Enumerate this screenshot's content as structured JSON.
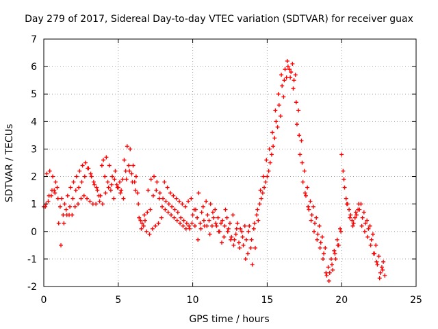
{
  "chart_data": {
    "type": "scatter",
    "title": "Day 279 of 2017, Sidereal Day-to-day VTEC variation (SDTVAR) for receiver guax",
    "xlabel": "GPS time / hours",
    "ylabel": "SDTVAR / TECUs",
    "xlim": [
      0,
      25
    ],
    "ylim": [
      -2,
      7
    ],
    "xticks": [
      "0",
      "5",
      "10",
      "15",
      "20",
      "25"
    ],
    "yticks": [
      "-2",
      "-1",
      "0",
      "1",
      "2",
      "3",
      "4",
      "5",
      "6",
      "7"
    ],
    "grid": true,
    "marker": "+",
    "color": "#ff0000",
    "series": [
      {
        "name": "SDTVAR",
        "x": [
          0.0,
          0.2,
          0.4,
          0.6,
          0.8,
          1.0,
          1.2,
          1.4,
          1.6,
          1.8,
          2.0,
          2.2,
          2.4,
          2.6,
          2.8,
          3.0,
          3.2,
          3.4,
          3.6,
          3.8,
          4.0,
          4.2,
          4.4,
          4.6,
          4.8,
          5.0,
          5.2,
          5.4,
          5.6,
          5.8,
          6.0,
          6.2,
          6.4,
          6.6,
          6.8,
          7.0,
          7.2,
          7.4,
          7.6,
          7.8,
          8.0,
          8.2,
          8.4,
          8.6,
          8.8,
          9.0,
          9.2,
          9.4,
          9.6,
          9.8,
          10.0,
          10.2,
          10.4,
          10.6,
          10.8,
          11.0,
          11.2,
          11.4,
          11.6,
          11.8,
          12.0,
          12.2,
          12.4,
          12.6,
          12.8,
          13.0,
          13.2,
          13.4,
          13.6,
          13.8,
          14.0,
          14.2,
          14.4,
          14.6,
          14.8,
          15.0,
          15.2,
          15.4,
          15.6,
          15.8,
          16.0,
          16.2,
          16.4,
          16.6,
          16.8,
          17.0,
          17.2,
          17.4,
          17.6,
          17.8,
          18.0,
          18.2,
          18.4,
          18.6,
          18.8,
          19.0,
          19.2,
          19.4,
          19.6,
          19.8,
          20.0,
          20.2,
          20.4,
          20.6,
          20.8,
          21.0,
          21.2,
          21.4,
          21.6,
          21.8,
          22.0,
          22.2,
          22.4,
          22.6,
          22.8,
          0.1,
          0.3,
          0.5,
          0.7,
          0.9,
          1.1,
          1.3,
          1.5,
          1.7,
          1.9,
          2.1,
          2.3,
          2.5,
          2.7,
          2.9,
          3.1,
          3.3,
          3.5,
          3.7,
          3.9,
          4.1,
          4.3,
          4.5,
          4.7,
          4.9,
          5.1,
          5.3,
          5.5,
          5.7,
          5.9,
          6.1,
          6.3,
          6.5,
          6.7,
          6.9,
          7.1,
          7.3,
          7.5,
          7.7,
          7.9,
          8.1,
          8.3,
          8.5,
          8.7,
          8.9,
          9.1,
          9.3,
          9.5,
          9.7,
          9.9,
          10.1,
          10.3,
          10.5,
          10.7,
          10.9,
          11.1,
          11.3,
          11.5,
          11.7,
          11.9,
          12.1,
          12.3,
          12.5,
          12.7,
          12.9,
          13.1,
          13.3,
          13.5,
          13.7,
          13.9,
          14.1,
          14.3,
          14.5,
          14.7,
          14.9,
          15.1,
          15.3,
          15.5,
          15.7,
          15.9,
          16.1,
          16.3,
          16.5,
          16.7,
          16.9,
          17.1,
          17.3,
          17.5,
          17.7,
          17.9,
          18.1,
          18.3,
          18.5,
          18.7,
          18.9,
          19.1,
          19.3,
          19.5,
          19.7,
          19.9,
          20.1,
          20.3,
          20.5,
          20.7,
          20.9,
          21.1,
          21.3,
          21.5,
          21.7,
          21.9,
          22.1,
          22.3,
          22.5,
          22.7,
          22.9,
          0.15,
          0.35,
          0.55,
          0.75,
          0.95,
          1.15,
          1.35,
          1.55,
          1.75,
          1.95,
          2.15,
          2.35,
          2.55,
          2.75,
          2.95,
          3.15,
          3.35,
          3.55,
          3.75,
          3.95,
          4.15,
          4.35,
          4.55,
          4.75,
          4.95,
          5.15,
          5.35,
          5.55,
          5.75,
          5.95,
          6.15,
          6.35,
          6.55,
          6.75,
          6.95,
          7.15,
          7.35,
          7.55,
          7.75,
          7.95,
          8.15,
          8.35,
          8.55,
          8.75,
          8.95,
          9.15,
          9.35,
          9.55,
          9.75,
          9.95,
          10.15,
          10.35,
          10.55,
          10.75,
          10.95,
          11.15,
          11.35,
          11.55,
          11.75,
          11.95,
          12.15,
          12.35,
          12.55,
          12.75,
          12.95,
          13.15,
          13.35,
          13.55,
          13.75,
          13.95,
          14.15,
          14.35,
          14.55,
          14.75,
          14.95,
          15.15,
          15.35,
          15.55,
          15.75,
          15.95,
          16.15,
          16.35,
          16.55,
          16.75,
          16.95,
          17.15,
          17.35,
          17.55,
          17.75,
          17.95,
          18.15,
          18.35,
          18.55,
          18.75,
          18.95,
          19.15,
          19.35,
          19.55,
          19.75,
          19.95,
          20.15,
          20.35,
          20.55,
          20.75,
          20.95,
          21.15,
          21.35,
          21.55,
          21.75,
          21.95,
          22.15,
          22.35,
          22.55,
          22.75
        ],
        "y": [
          0.9,
          2.1,
          2.2,
          2.0,
          1.8,
          0.3,
          1.2,
          1.0,
          1.3,
          1.6,
          1.8,
          2.0,
          2.2,
          2.4,
          2.5,
          2.3,
          2.0,
          1.7,
          1.5,
          1.3,
          2.6,
          2.7,
          2.4,
          2.0,
          2.2,
          1.6,
          1.5,
          2.6,
          3.1,
          3.0,
          2.4,
          2.0,
          0.5,
          0.3,
          0.4,
          1.5,
          1.9,
          2.0,
          1.8,
          1.4,
          1.2,
          1.1,
          1.0,
          0.9,
          0.8,
          0.7,
          0.5,
          0.4,
          0.3,
          0.1,
          0.6,
          0.8,
          1.4,
          0.7,
          0.2,
          0.6,
          1.0,
          0.5,
          0.2,
          0.0,
          0.4,
          0.8,
          0.1,
          -0.2,
          -0.3,
          0.3,
          0.1,
          -0.5,
          -0.3,
          0.2,
          -1.2,
          -0.6,
          0.4,
          1.2,
          1.6,
          2.0,
          2.5,
          3.1,
          4.0,
          4.6,
          5.3,
          5.9,
          6.0,
          5.8,
          5.5,
          3.9,
          2.8,
          1.8,
          1.3,
          0.8,
          0.6,
          0.3,
          -0.1,
          -0.4,
          -0.8,
          -1.6,
          -1.5,
          -1.4,
          -1.0,
          -0.5,
          2.8,
          1.6,
          1.0,
          0.6,
          0.3,
          0.6,
          0.8,
          0.5,
          0.3,
          0.1,
          -0.3,
          -0.8,
          -1.2,
          -1.5,
          -1.1,
          0.9,
          1.1,
          1.3,
          1.5,
          1.6,
          0.9,
          0.6,
          0.8,
          0.6,
          0.6,
          0.9,
          1.0,
          1.2,
          1.3,
          1.2,
          1.1,
          1.0,
          1.0,
          1.3,
          2.4,
          2.0,
          1.8,
          1.5,
          1.2,
          1.7,
          1.8,
          1.9,
          2.2,
          2.4,
          2.1,
          1.8,
          1.4,
          0.4,
          0.2,
          0.0,
          -0.1,
          0.1,
          0.2,
          0.3,
          0.5,
          1.8,
          1.6,
          1.4,
          1.3,
          1.2,
          1.1,
          1.0,
          0.9,
          1.1,
          1.2,
          0.8,
          0.5,
          0.3,
          0.9,
          1.1,
          0.4,
          0.2,
          0.8,
          0.5,
          0.3,
          -0.2,
          0.5,
          0.3,
          0.6,
          -0.1,
          -0.4,
          0.0,
          0.2,
          -0.8,
          -0.6,
          0.1,
          0.6,
          1.0,
          1.4,
          1.8,
          2.2,
          2.8,
          3.4,
          3.8,
          4.2,
          4.9,
          5.6,
          5.9,
          6.1,
          5.7,
          4.4,
          3.3,
          2.2,
          1.6,
          1.1,
          0.9,
          0.5,
          0.2,
          -0.2,
          -0.6,
          -1.3,
          -1.0,
          -0.7,
          -0.3,
          0.1,
          2.2,
          1.2,
          0.8,
          0.4,
          0.5,
          0.8,
          1.0,
          0.7,
          0.4,
          0.2,
          -0.1,
          -0.5,
          -0.9,
          -1.3,
          -1.6,
          1.0,
          1.3,
          1.5,
          1.4,
          1.2,
          -0.5,
          0.3,
          0.6,
          0.9,
          1.2,
          1.5,
          1.6,
          1.8,
          2.0,
          2.3,
          2.1,
          1.8,
          1.6,
          1.1,
          1.0,
          1.4,
          1.6,
          1.7,
          1.9,
          1.6,
          1.4,
          1.2,
          1.9,
          2.2,
          1.8,
          1.5,
          1.0,
          0.1,
          0.6,
          0.7,
          0.8,
          1.3,
          1.5,
          1.2,
          0.9,
          0.8,
          0.7,
          0.6,
          0.5,
          0.4,
          0.3,
          0.2,
          0.1,
          0.2,
          0.3,
          0.2,
          -0.3,
          0.1,
          0.4,
          0.2,
          -0.1,
          0.7,
          0.3,
          0.0,
          -0.4,
          0.2,
          0.0,
          -0.3,
          -0.5,
          0.1,
          -0.6,
          -0.2,
          -1.0,
          0.0,
          -0.3,
          0.3,
          0.8,
          1.5,
          2.0,
          2.6,
          3.0,
          3.6,
          4.4,
          5.0,
          5.7,
          5.5,
          6.2,
          5.6,
          5.2,
          4.7,
          3.5,
          2.5,
          1.4,
          0.9,
          0.4,
          0.0,
          -0.3,
          -0.6,
          -1.0,
          -1.5,
          -1.8,
          -1.2,
          -0.8,
          -0.5,
          0.0,
          1.9,
          1.0,
          0.5,
          0.2,
          0.7,
          1.0,
          0.2,
          0.0,
          -0.2,
          -0.5,
          -0.8,
          -1.1,
          -1.7,
          -1.4
        ]
      }
    ]
  }
}
